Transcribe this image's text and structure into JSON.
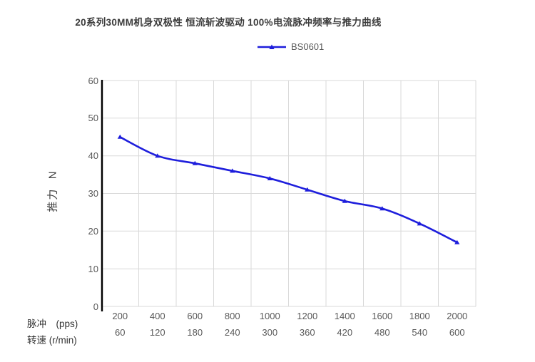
{
  "chart_data": {
    "type": "line",
    "title": "20系列30MM机身双极性 恒流斩波驱动 100%电流脉冲频率与推力曲线",
    "ylabel": "推力  N",
    "ylim": [
      0,
      60
    ],
    "y_ticks": [
      0,
      10,
      20,
      30,
      40,
      50,
      60
    ],
    "grid": true,
    "legend_position": "top",
    "x_axis": {
      "row1_label": "脉冲　(pps)",
      "row2_label": "转速 (r/min)",
      "row1_ticks": [
        200,
        400,
        600,
        800,
        1000,
        1200,
        1400,
        1600,
        1800,
        2000
      ],
      "row2_ticks": [
        60,
        120,
        180,
        240,
        300,
        360,
        420,
        480,
        540,
        600
      ]
    },
    "series": [
      {
        "name": "BS0601",
        "color": "#1e1edc",
        "marker": "triangle-up",
        "values": [
          45,
          40,
          38,
          36,
          34,
          31,
          28,
          26,
          22,
          17
        ]
      }
    ]
  },
  "style": {
    "grid_color": "#d9d9d9",
    "axis_color": "#000000",
    "tick_color": "#595959",
    "title_color": "#3b3b3b"
  }
}
